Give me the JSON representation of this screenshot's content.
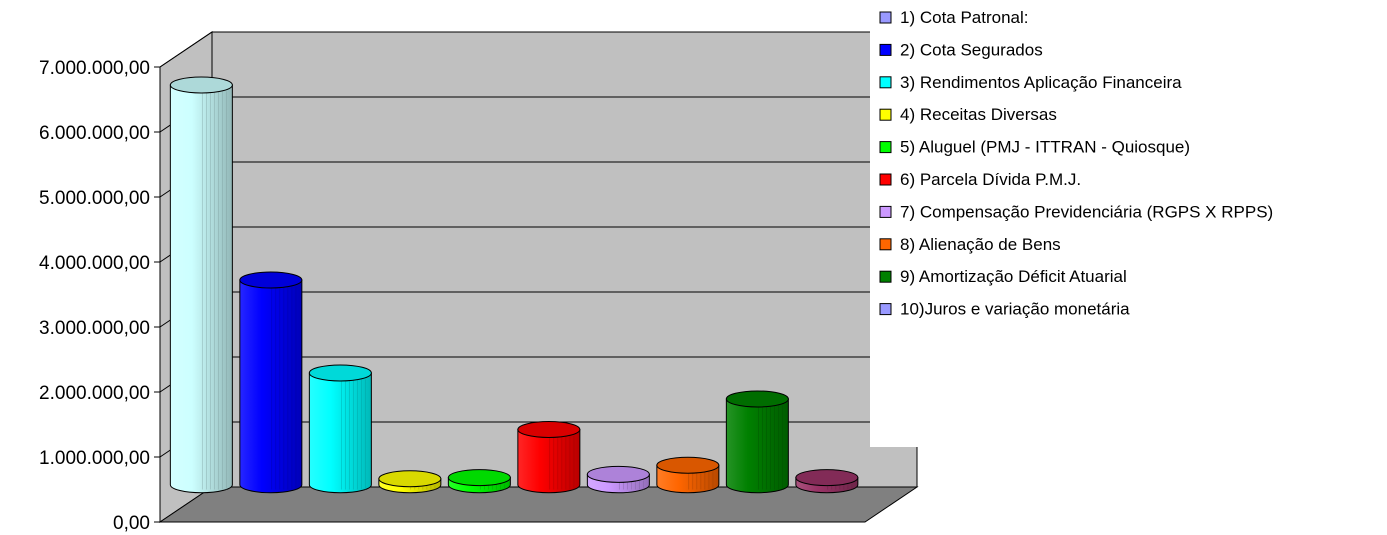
{
  "chart_data": {
    "type": "bar",
    "style": "3d-cylinder",
    "categories": [
      "1) Cota Patronal:",
      "2) Cota Segurados",
      "3) Rendimentos Aplicação Financeira",
      "4) Receitas Diversas",
      "5) Aluguel (PMJ - ITTRAN - Quiosque)",
      "6) Parcela Dívida P.M.J.",
      "7) Compensação Previdenciária (RGPS X RPPS)",
      "8) Alienação de Bens",
      "9) Amortização Déficit Atuarial",
      "10)Juros e variação monetária"
    ],
    "values": [
      6150000,
      3150000,
      1720000,
      60000,
      110000,
      850000,
      160000,
      300000,
      1320000,
      110000
    ],
    "colors": [
      "#CCFFFF",
      "#0000FF",
      "#00FFFF",
      "#FFFF00",
      "#00FF00",
      "#FF0000",
      "#CC99FF",
      "#FF6600",
      "#008000",
      "#993366"
    ],
    "legend_colors": [
      "#9999FF",
      "#0000FF",
      "#00FFFF",
      "#FFFF00",
      "#00FF00",
      "#FF0000",
      "#CC99FF",
      "#FF6600",
      "#008000",
      "#9999FF"
    ],
    "yticks": [
      "0,00",
      "1.000.000,00",
      "2.000.000,00",
      "3.000.000,00",
      "4.000.000,00",
      "5.000.000,00",
      "6.000.000,00",
      "7.000.000,00"
    ],
    "ylim": [
      0,
      7000000
    ],
    "grid": true,
    "legend_position": "top-right",
    "wall_color": "#C0C0C0",
    "floor_color": "#808080"
  }
}
